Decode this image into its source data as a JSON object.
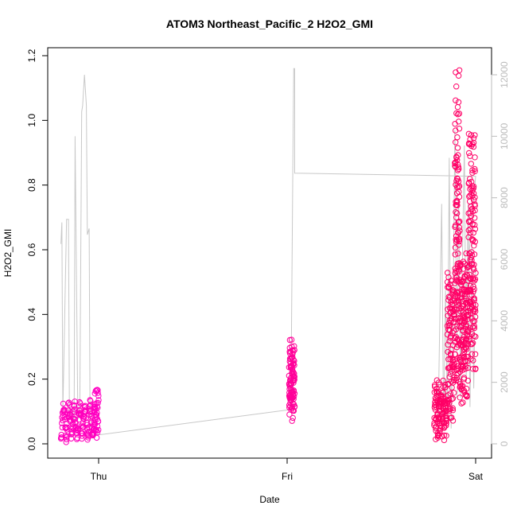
{
  "chart_data": {
    "type": "scatter",
    "title": "ATOM3 Northeast_Pacific_2 H2O2_GMI",
    "xlabel": "Date",
    "ylabel": "H2O2_GMI",
    "x_ticks": [
      "Thu",
      "Fri",
      "Sat"
    ],
    "ylim": [
      0,
      1.2
    ],
    "y_ticks": [
      "0.0",
      "0.2",
      "0.4",
      "0.6",
      "0.8",
      "1.0",
      "1.2"
    ],
    "y2lim": [
      0,
      12000
    ],
    "y2_ticks": [
      "0",
      "2000",
      "4000",
      "6000",
      "8000",
      "10000",
      "12000"
    ],
    "grid": false,
    "legend": "none",
    "colors": {
      "points_early": "#ff00cc",
      "points_late": "#ff0066",
      "altitude_line": "#c8c8c8",
      "axis": "#000000",
      "axis_right": "#bbbbbb"
    },
    "series": [
      {
        "role": "points",
        "marker": "open-circle",
        "segments": [
          {
            "x_range": [
              -1.2,
              -1.02
            ],
            "y_range": [
              0.003,
              0.14
            ],
            "n": 150,
            "seed": 11,
            "color_mix": 0.85
          },
          {
            "x_range": [
              -1.025,
              -1.0
            ],
            "y_range": [
              0.003,
              0.185
            ],
            "n": 40,
            "seed": 12,
            "color_mix": 0.9
          },
          {
            "x_range": [
              0.01,
              0.04
            ],
            "y_range": [
              0.065,
              0.33
            ],
            "n": 110,
            "seed": 21,
            "color_mix": 0.5
          },
          {
            "x_range": [
              0.78,
              0.85
            ],
            "y_range": [
              0.002,
              0.2
            ],
            "n": 120,
            "seed": 31,
            "color_mix": 0.0
          },
          {
            "x_range": [
              0.85,
              0.89
            ],
            "y_range": [
              0.05,
              0.56
            ],
            "n": 110,
            "seed": 32,
            "color_mix": 0.0
          },
          {
            "x_range": [
              0.89,
              0.915
            ],
            "y_range": [
              0.12,
              1.19
            ],
            "n": 120,
            "seed": 33,
            "color_mix": 0.0
          },
          {
            "x_range": [
              0.915,
              0.96
            ],
            "y_range": [
              0.1,
              0.6
            ],
            "n": 140,
            "seed": 34,
            "color_mix": 0.0
          },
          {
            "x_range": [
              0.96,
              1.0
            ],
            "y_range": [
              0.18,
              0.99
            ],
            "n": 150,
            "seed": 35,
            "color_mix": 0.0
          }
        ]
      },
      {
        "role": "altitude",
        "axis": "right",
        "x": [
          -1.2,
          -1.195,
          -1.19,
          -1.17,
          -1.16,
          -1.155,
          -1.14,
          -1.13,
          -1.125,
          -1.11,
          -1.1,
          -1.09,
          -1.085,
          -1.075,
          -1.065,
          -1.06,
          -1.05,
          -1.045,
          -1.035,
          -1.03,
          -1.02,
          -1.015,
          -1.0,
          -0.99,
          0.0,
          0.01,
          0.02,
          0.03,
          0.035,
          0.04,
          0.04,
          1.0,
          1.0,
          0.9,
          0.8,
          0.8,
          0.82,
          0.83,
          0.84,
          0.85,
          0.86,
          0.87,
          0.88,
          0.89,
          0.9,
          0.91,
          0.92,
          0.93,
          0.94,
          0.95,
          0.96,
          0.97,
          0.98,
          0.99,
          1.0
        ],
        "y": [
          6500,
          7200,
          1000,
          7300,
          7300,
          800,
          1200,
          600,
          10000,
          800,
          1000,
          10800,
          11000,
          12000,
          11000,
          6800,
          7000,
          300,
          300,
          200,
          300,
          300,
          300,
          300,
          1100,
          1100,
          1200,
          8800,
          12200,
          12200,
          8800,
          8700,
          8700,
          1500,
          1700,
          300,
          7800,
          500,
          5000,
          800,
          9300,
          500,
          4000,
          10200,
          3000,
          8000,
          1500,
          6000,
          9700,
          2000,
          7800,
          1200,
          6500,
          1800,
          5800
        ]
      }
    ]
  }
}
